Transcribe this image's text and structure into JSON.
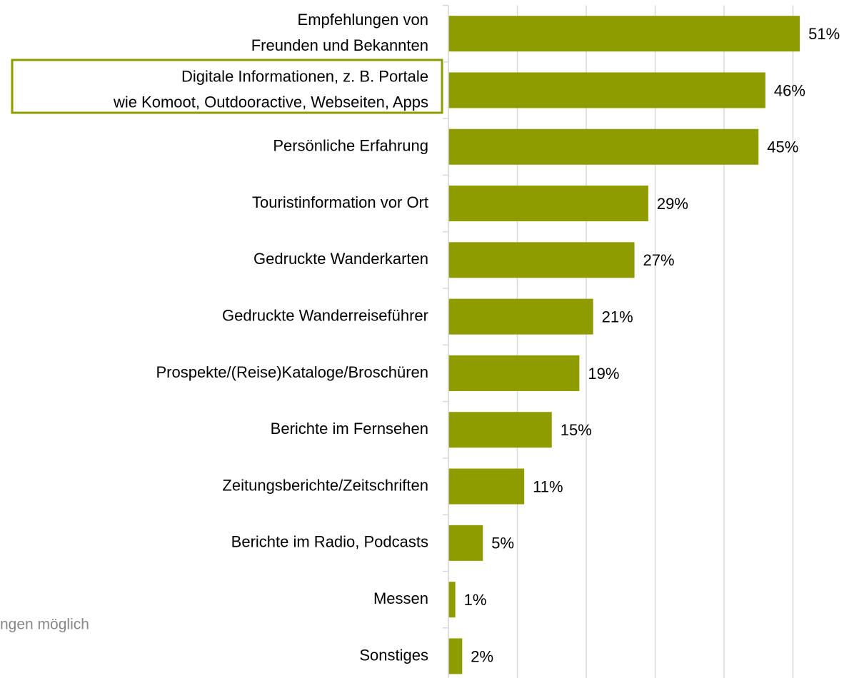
{
  "chart_data": {
    "type": "barh",
    "categories": [
      [
        "Empfehlungen von",
        "Freunden und Bekannten"
      ],
      [
        "Digitale Informationen, z. B. Portale",
        "wie Komoot, Outdooractive, Webseiten, Apps"
      ],
      [
        "Persönliche Erfahrung"
      ],
      [
        "Touristinformation vor Ort"
      ],
      [
        "Gedruckte Wanderkarten"
      ],
      [
        "Gedruckte Wanderreiseführer"
      ],
      [
        "Prospekte/(Reise)Kataloge/Broschüren"
      ],
      [
        "Berichte im Fernsehen"
      ],
      [
        "Zeitungsberichte/Zeitschriften"
      ],
      [
        "Berichte im Radio, Podcasts"
      ],
      [
        "Messen"
      ],
      [
        "Sonstiges"
      ]
    ],
    "values": [
      51,
      46,
      45,
      29,
      27,
      21,
      19,
      15,
      11,
      5,
      1,
      2
    ],
    "value_labels": [
      "51%",
      "46%",
      "45%",
      "29%",
      "27%",
      "21%",
      "19%",
      "15%",
      "11%",
      "5%",
      "1%",
      "2%"
    ],
    "color": "#8e9c00",
    "xlim": [
      0,
      55
    ],
    "xticks": [
      0,
      10,
      20,
      30,
      40,
      50
    ],
    "grid": true,
    "note": "ngen möglich"
  }
}
